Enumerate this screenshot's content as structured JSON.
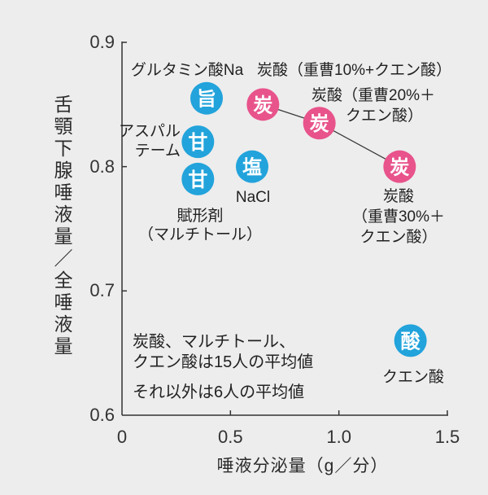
{
  "chart_data": {
    "type": "scatter",
    "xlabel": "唾液分泌量（g／分）",
    "ylabel": "舌顎下腺唾液量／全唾液量",
    "xlim": [
      0,
      1.5
    ],
    "ylim": [
      0.6,
      0.9
    ],
    "xticks": [
      "0",
      "0.5",
      "1.0",
      "1.5"
    ],
    "yticks": [
      "0.9",
      "0.8",
      "0.7",
      "0.6"
    ],
    "grid": false,
    "legend": "none",
    "marker_text_color": "#ffffff",
    "series": [
      {
        "mode": "markers",
        "color": "#22a3db",
        "points": [
          {
            "x": 0.39,
            "y": 0.855,
            "symbol": "旨",
            "label": [
              "グルタミン酸Na"
            ]
          },
          {
            "x": 0.35,
            "y": 0.82,
            "symbol": "甘",
            "label": [
              "アスパル",
              "テーム"
            ]
          },
          {
            "x": 0.35,
            "y": 0.79,
            "symbol": "甘",
            "label": [
              "賦形剤",
              "（マルチトール）"
            ]
          },
          {
            "x": 0.6,
            "y": 0.8,
            "symbol": "塩",
            "label": [
              "NaCl"
            ]
          },
          {
            "x": 1.33,
            "y": 0.66,
            "symbol": "酸",
            "label": [
              "クエン酸"
            ]
          }
        ]
      },
      {
        "mode": "lines+markers",
        "color": "#e8538b",
        "line_color": "#3a3a3a",
        "points": [
          {
            "x": 0.65,
            "y": 0.85,
            "symbol": "炭",
            "label": [
              "炭酸（重曹10%+クエン酸）"
            ]
          },
          {
            "x": 0.91,
            "y": 0.835,
            "symbol": "炭",
            "label": [
              "炭酸（重曹20%＋",
              "クエン酸）"
            ]
          },
          {
            "x": 1.28,
            "y": 0.8,
            "symbol": "炭",
            "label": [
              "炭酸",
              "（重曹30%＋",
              "クエン酸）"
            ]
          }
        ]
      }
    ],
    "notes": [
      "炭酸、マルチトール、",
      "クエン酸は15人の平均値",
      "それ以外は6人の平均値"
    ]
  }
}
